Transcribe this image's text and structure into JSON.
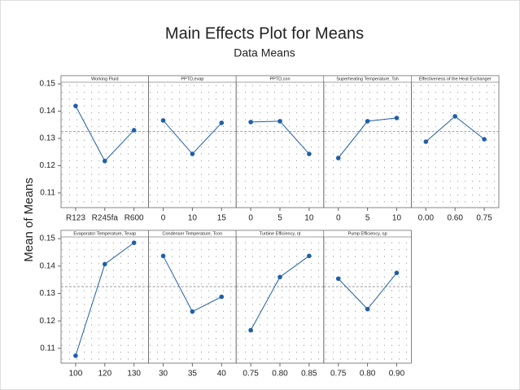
{
  "chart_data": {
    "type": "line",
    "title": "Main Effects Plot for Means",
    "subtitle": "Data Means",
    "ylabel": "Mean of Means",
    "ylim": [
      0.1046,
      0.153
    ],
    "yticks": [
      0.11,
      0.12,
      0.13,
      0.14,
      0.15
    ],
    "reference": 0.1325,
    "color": "#1f5fa8",
    "panels": [
      {
        "title": "Working Fluid",
        "categories": [
          "R123",
          "R245fa",
          "R600"
        ],
        "values": [
          0.1419,
          0.1217,
          0.133
        ]
      },
      {
        "title": "PPTD,evap",
        "categories": [
          "0",
          "10",
          "15"
        ],
        "values": [
          0.1366,
          0.1243,
          0.1357
        ]
      },
      {
        "title": "PPTD,con",
        "categories": [
          "0",
          "5",
          "10"
        ],
        "values": [
          0.136,
          0.1363,
          0.1243
        ]
      },
      {
        "title": "Superheating Temperature, Tsh",
        "categories": [
          "0",
          "5",
          "10"
        ],
        "values": [
          0.1228,
          0.1363,
          0.1375
        ]
      },
      {
        "title": "Effectiveness of the Heat Exchanger",
        "categories": [
          "0.00",
          "0.60",
          "0.75"
        ],
        "values": [
          0.1288,
          0.1381,
          0.1297
        ]
      },
      {
        "title": "Evaporator Temperature, Tevap",
        "categories": [
          "100",
          "120",
          "130"
        ],
        "values": [
          0.1073,
          0.1407,
          0.1485
        ]
      },
      {
        "title": "Condenser Temperature, Tcon",
        "categories": [
          "30",
          "35",
          "40"
        ],
        "values": [
          0.1437,
          0.1234,
          0.1288
        ]
      },
      {
        "title": "Turbine Efficiency, ηt",
        "categories": [
          "0.75",
          "0.80",
          "0.85"
        ],
        "values": [
          0.1166,
          0.136,
          0.1437
        ]
      },
      {
        "title": "Pump Efficiency, ηp",
        "categories": [
          "0.75",
          "0.80",
          "0.90"
        ],
        "values": [
          0.1354,
          0.1243,
          0.1375
        ]
      }
    ]
  }
}
